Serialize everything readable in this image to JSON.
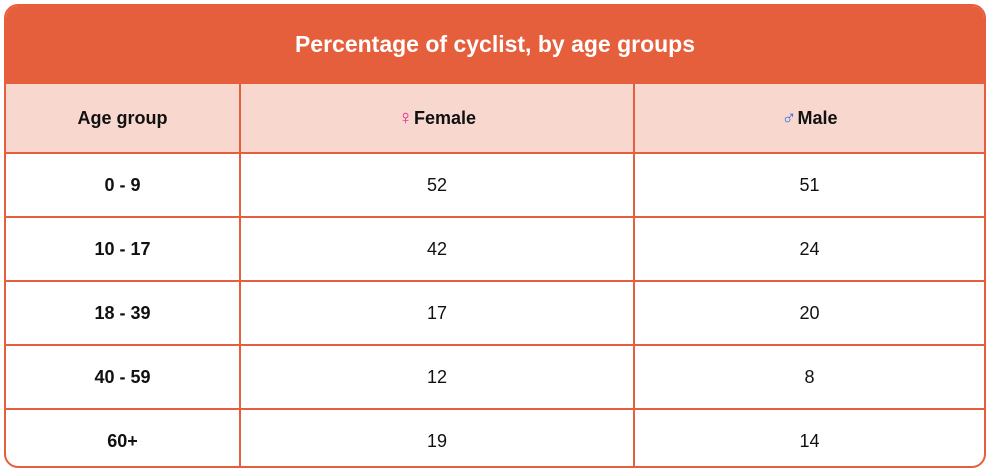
{
  "chart_data": {
    "type": "table",
    "title": "Percentage of cyclist, by age groups",
    "columns": [
      "Age group",
      "Female",
      "Male"
    ],
    "column_icons": [
      "",
      "female-symbol",
      "male-symbol"
    ],
    "rows": [
      [
        "0 - 9",
        "52",
        "51"
      ],
      [
        "10 - 17",
        "42",
        "24"
      ],
      [
        "18 - 39",
        "17",
        "20"
      ],
      [
        "40 - 59",
        "12",
        "8"
      ],
      [
        "60+",
        "19",
        "14"
      ]
    ]
  },
  "icons": {
    "female": "♀",
    "male": "♂"
  },
  "colors": {
    "accent": "#e65f3c",
    "header_bg": "#f8d7cf",
    "female_icon": "#e91e8c",
    "male_icon": "#2f6fe0"
  }
}
